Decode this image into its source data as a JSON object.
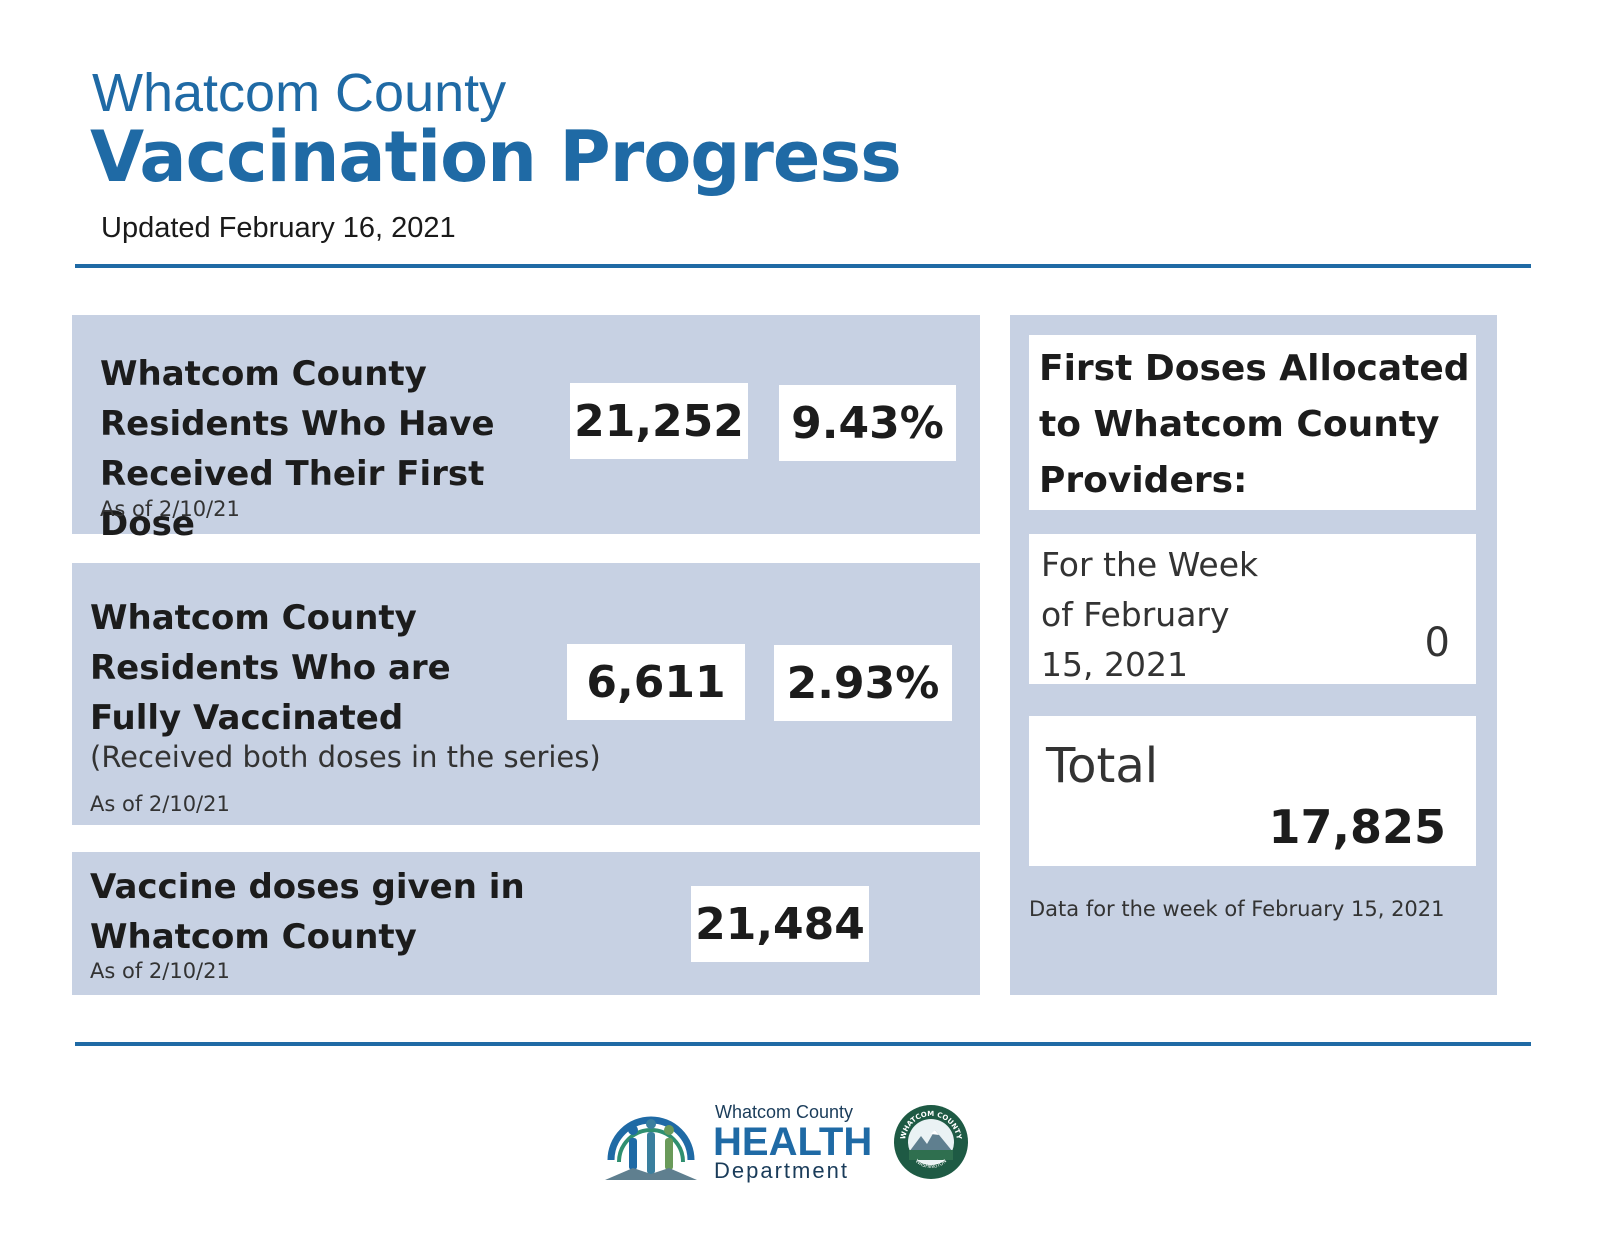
{
  "header": {
    "county": "Whatcom County",
    "title": "Vaccination Progress",
    "updated": "Updated February 16, 2021"
  },
  "first_dose": {
    "label": "Whatcom County Residents Who Have Received Their First Dose",
    "as_of": "As of 2/10/21",
    "count": "21,252",
    "percent": "9.43%"
  },
  "fully_vaccinated": {
    "label": "Whatcom County Residents Who are Fully Vaccinated",
    "note": "(Received both doses in the series)",
    "as_of": "As of 2/10/21",
    "count": "6,611",
    "percent": "2.93%"
  },
  "doses_given": {
    "label": "Vaccine doses given in Whatcom County",
    "as_of": "As of 2/10/21",
    "count": "21,484"
  },
  "allocation": {
    "heading": "First Doses Allocated to Whatcom County Providers:",
    "week_label": "For the Week of February 15, 2021",
    "week_value": "0",
    "total_label": "Total",
    "total_value": "17,825",
    "data_note": "Data for the week of February 15, 2021"
  },
  "logo": {
    "line1": "Whatcom County",
    "line2": "HEALTH",
    "line3": "Department",
    "seal_text": "WHATCOM COUNTY",
    "seal_subtext": "WASHINGTON"
  },
  "colors": {
    "brand_blue": "#1f6aa5",
    "panel_bg": "#c7d1e3"
  }
}
